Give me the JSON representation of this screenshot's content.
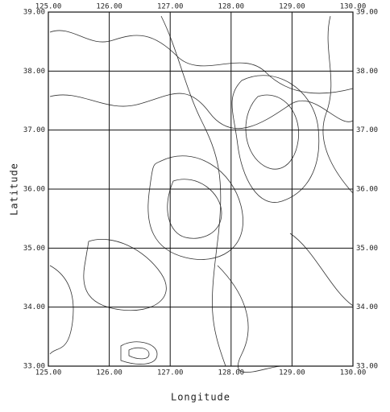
{
  "map": {
    "xlabel": "Longitude",
    "ylabel": "Latitude",
    "xlim": [
      125,
      130
    ],
    "ylim": [
      33,
      39
    ],
    "xticks": [
      {
        "value": 125,
        "label": "125.00"
      },
      {
        "value": 126,
        "label": "126.00"
      },
      {
        "value": 127,
        "label": "127.00"
      },
      {
        "value": 128,
        "label": "128.00"
      },
      {
        "value": 129,
        "label": "129.00"
      },
      {
        "value": 130,
        "label": "130.00"
      }
    ],
    "yticks": [
      {
        "value": 33,
        "label": "33.00"
      },
      {
        "value": 34,
        "label": "34.00"
      },
      {
        "value": 35,
        "label": "35.00"
      },
      {
        "value": 36,
        "label": "36.00"
      },
      {
        "value": 37,
        "label": "37.00"
      },
      {
        "value": 38,
        "label": "38.00"
      },
      {
        "value": 39,
        "label": "39.00"
      }
    ]
  }
}
